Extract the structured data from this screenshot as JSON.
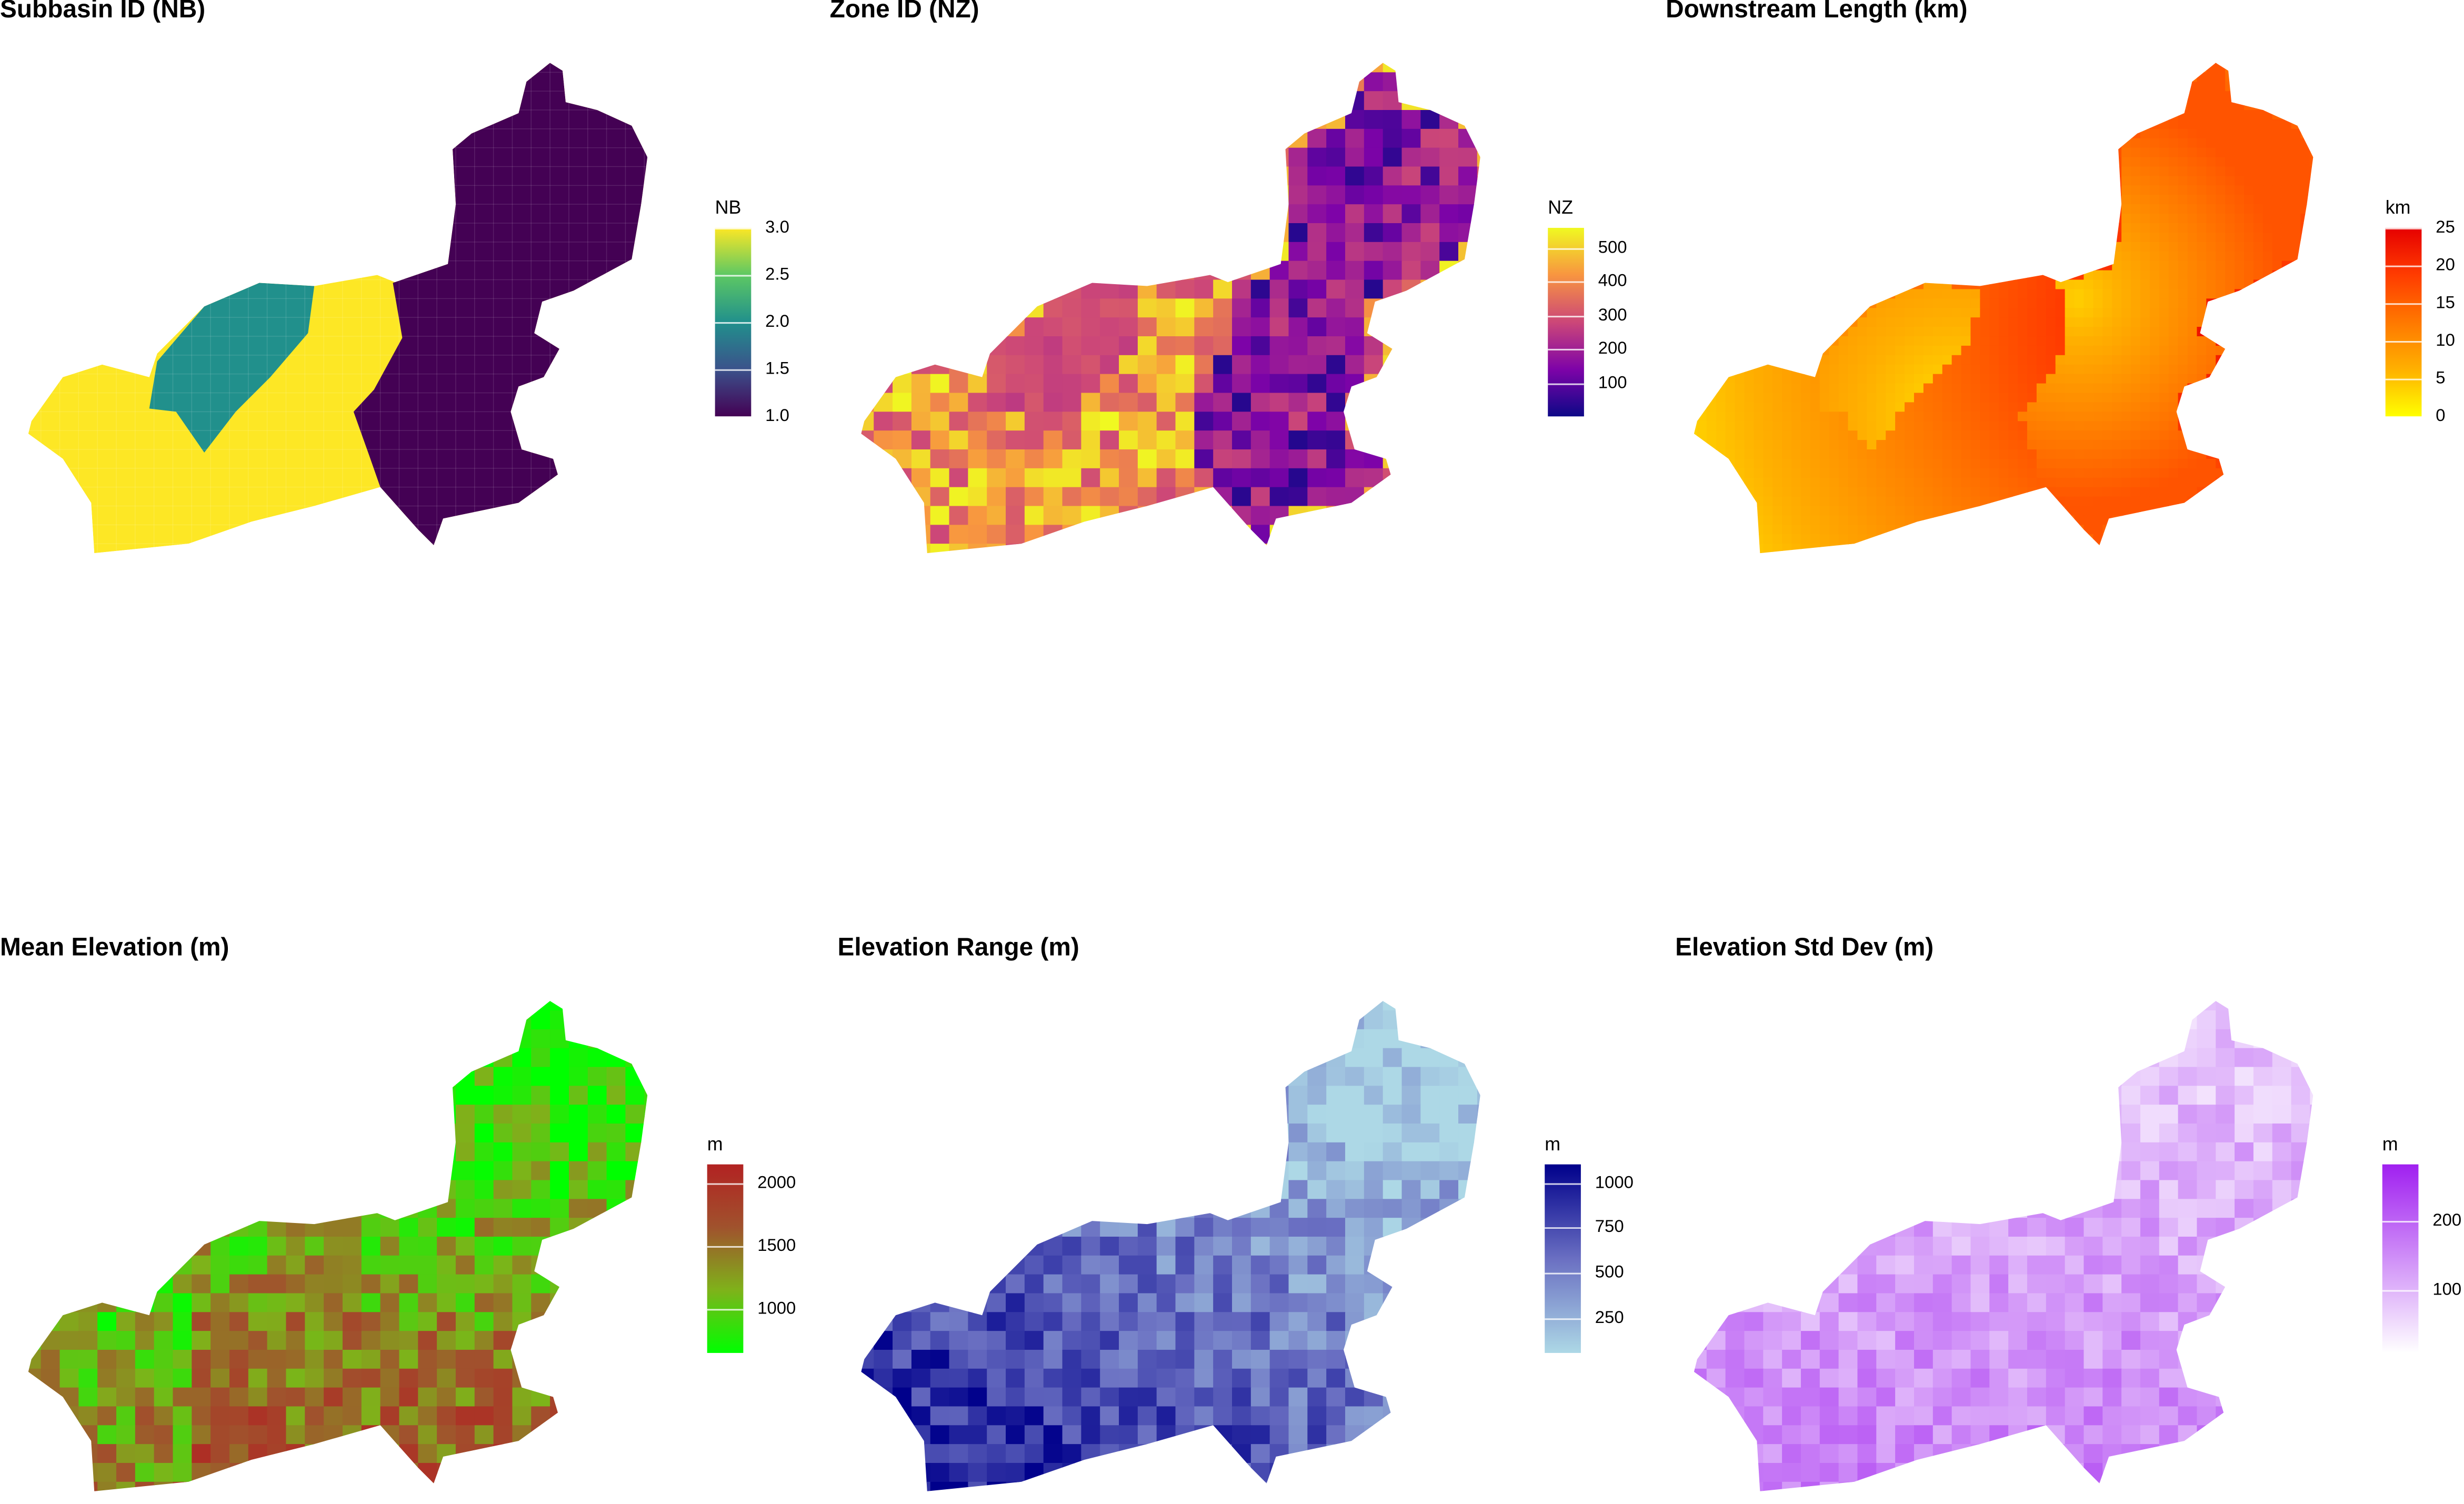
{
  "panels": [
    {
      "title": "Subbasin ID (NB)",
      "legend": {
        "title": "NB",
        "ticks": [
          "3.0",
          "2.5",
          "2.0",
          "1.5",
          "1.0"
        ],
        "tick_values": [
          3.0,
          2.5,
          2.0,
          1.5,
          1.0
        ],
        "range": [
          1.0,
          3.0
        ],
        "colors": [
          "#440154",
          "#3b528b",
          "#21908c",
          "#5dc863",
          "#fde725"
        ]
      }
    },
    {
      "title": "Zone ID (NZ)",
      "legend": {
        "title": "NZ",
        "ticks": [
          "500",
          "400",
          "300",
          "200",
          "100"
        ],
        "tick_values": [
          500,
          400,
          300,
          200,
          100
        ],
        "range": [
          1,
          560
        ],
        "colors": [
          "#0d0887",
          "#7e03a8",
          "#cc4778",
          "#f89540",
          "#f0f921"
        ]
      }
    },
    {
      "title": "Downstream Length (km)",
      "legend": {
        "title": "km",
        "ticks": [
          "25",
          "20",
          "15",
          "10",
          "5",
          "0"
        ],
        "tick_values": [
          25,
          20,
          15,
          10,
          5,
          0
        ],
        "range": [
          0,
          25
        ],
        "colors": [
          "#ffff00",
          "#ffb000",
          "#ff7800",
          "#ff3c00",
          "#e60000"
        ]
      }
    },
    {
      "title": "Mean Elevation (m)",
      "legend": {
        "title": "m",
        "ticks": [
          "2000",
          "1500",
          "1000"
        ],
        "tick_values": [
          2000,
          1500,
          1000
        ],
        "range": [
          650,
          2150
        ],
        "colors": [
          "#00ff00",
          "#7fb21a",
          "#a0522d",
          "#b22222"
        ]
      }
    },
    {
      "title": "Elevation Range (m)",
      "legend": {
        "title": "m",
        "ticks": [
          "1000",
          "750",
          "500",
          "250"
        ],
        "tick_values": [
          1000,
          750,
          500,
          250
        ],
        "range": [
          60,
          1100
        ],
        "colors": [
          "#add8e6",
          "#6a6fc2",
          "#00008b"
        ]
      }
    },
    {
      "title": "Elevation Std Dev (m)",
      "legend": {
        "title": "m",
        "ticks": [
          "200",
          "100"
        ],
        "tick_values": [
          200,
          100
        ],
        "range": [
          10,
          280
        ],
        "colors": [
          "#ffffff",
          "#a020f0"
        ]
      }
    }
  ]
}
